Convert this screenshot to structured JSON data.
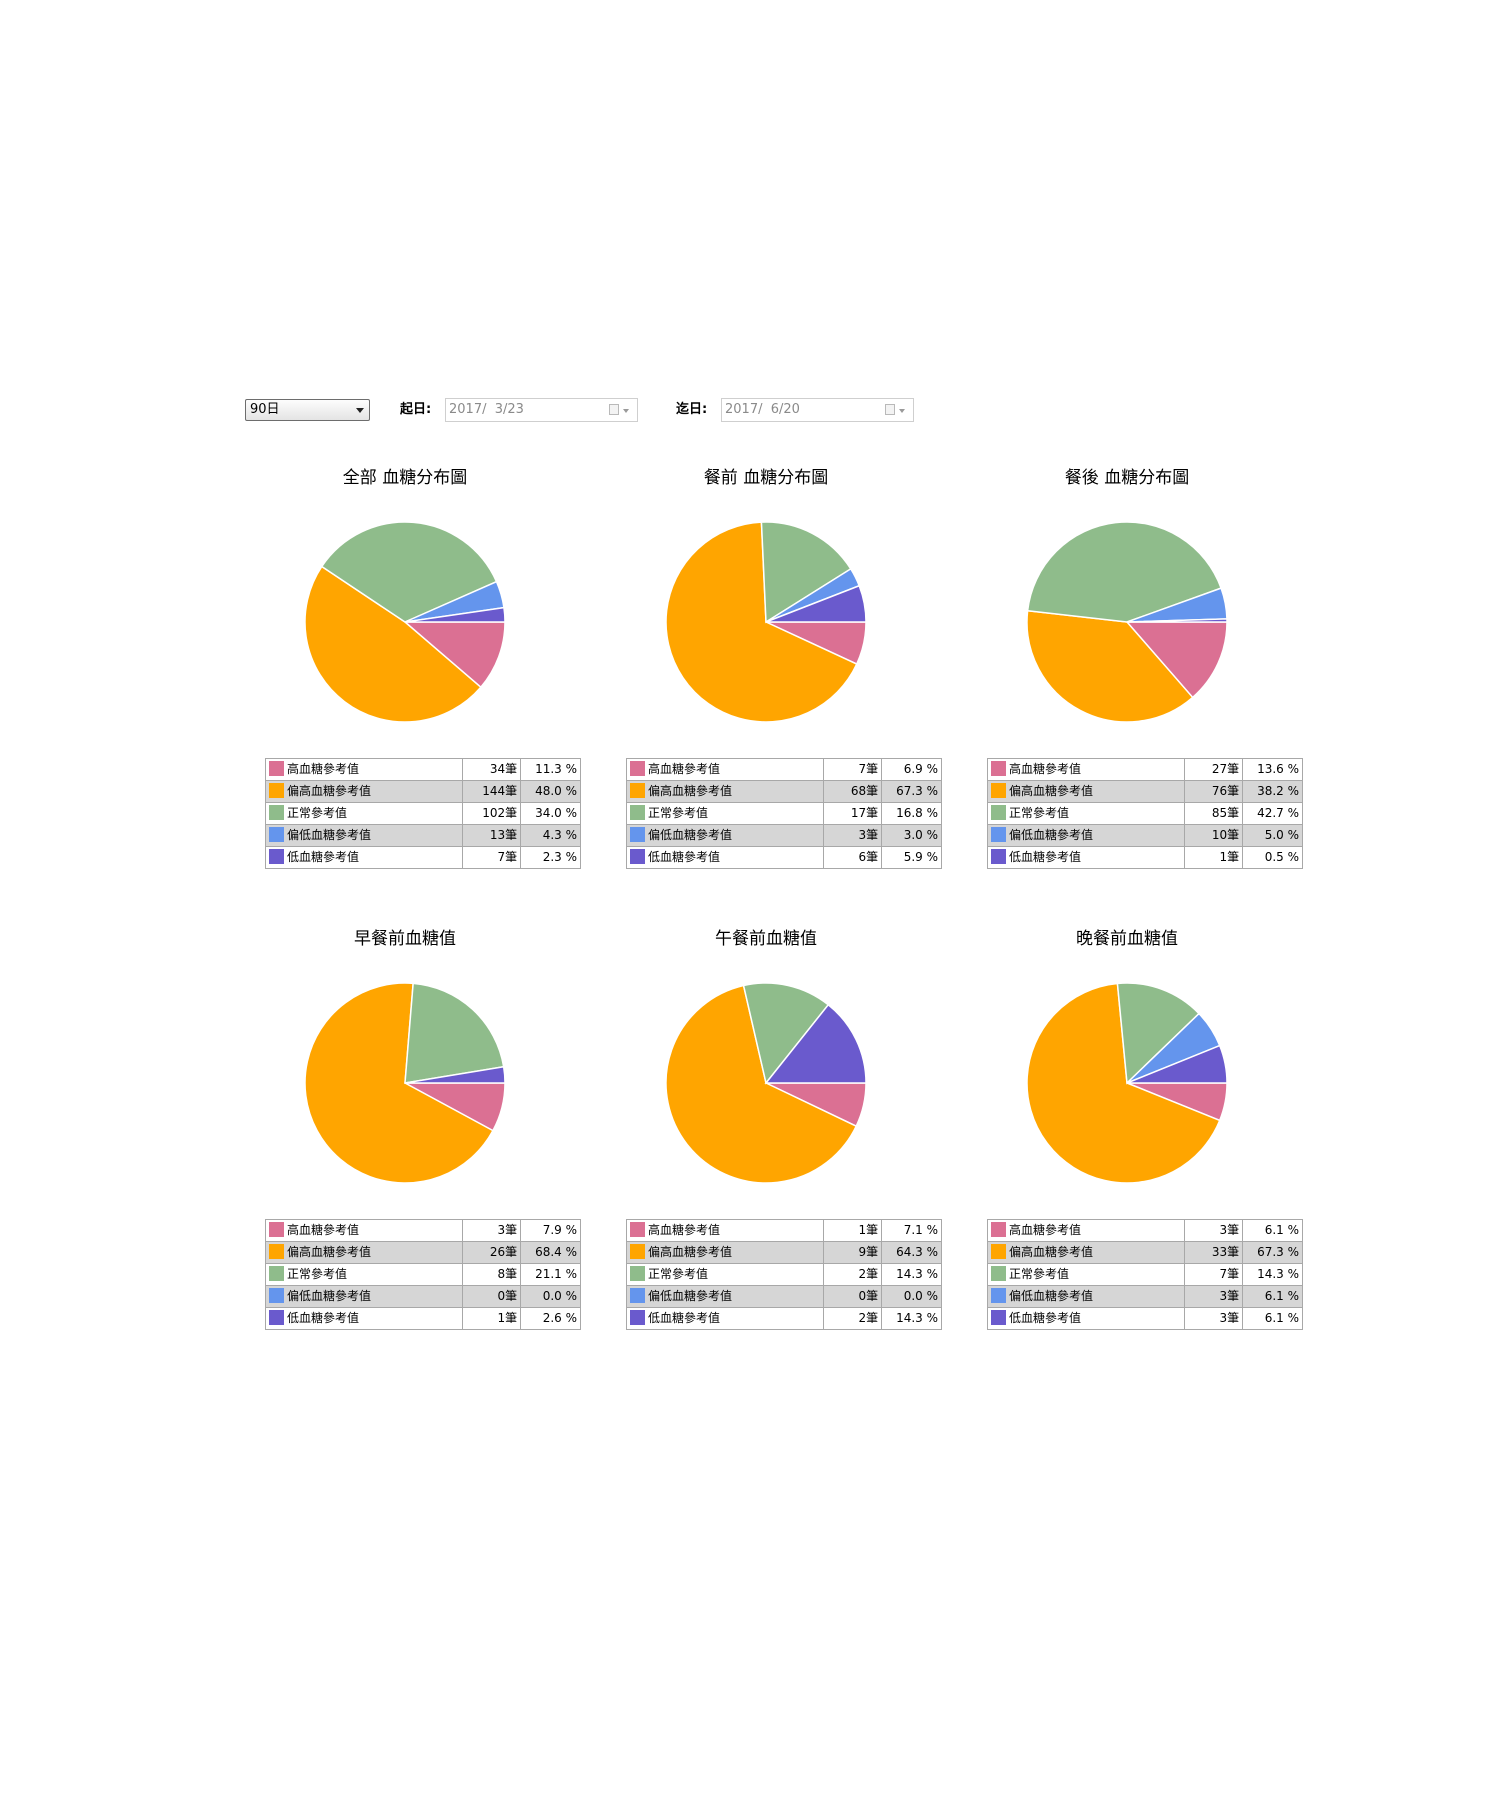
{
  "filters": {
    "period": "90日",
    "start_label": "起日:",
    "start_date": "2017/  3/23",
    "end_label": "迄日:",
    "end_date": "2017/  6/20"
  },
  "colors": {
    "high": "#db7093",
    "slightly_high": "#ffa500",
    "normal": "#8fbc8b",
    "slightly_low": "#6495ed",
    "low": "#6a5acd"
  },
  "chart_data": [
    {
      "type": "pie",
      "title": "全部 血糖分布圖",
      "labels": [
        "高血糖參考值",
        "偏高血糖參考值",
        "正常參考值",
        "偏低血糖參考值",
        "低血糖參考值"
      ],
      "counts": [
        "34筆",
        "144筆",
        "102筆",
        "13筆",
        "7筆"
      ],
      "values": [
        11.3,
        48.0,
        34.0,
        4.3,
        2.3
      ],
      "percent_labels": [
        "11.3 %",
        "48.0 %",
        "34.0 %",
        "4.3 %",
        "2.3 %"
      ],
      "colors": [
        "#db7093",
        "#ffa500",
        "#8fbc8b",
        "#6495ed",
        "#6a5acd"
      ]
    },
    {
      "type": "pie",
      "title": "餐前 血糖分布圖",
      "labels": [
        "高血糖參考值",
        "偏高血糖參考值",
        "正常參考值",
        "偏低血糖參考值",
        "低血糖參考值"
      ],
      "counts": [
        "7筆",
        "68筆",
        "17筆",
        "3筆",
        "6筆"
      ],
      "values": [
        6.9,
        67.3,
        16.8,
        3.0,
        5.9
      ],
      "percent_labels": [
        "6.9 %",
        "67.3 %",
        "16.8 %",
        "3.0 %",
        "5.9 %"
      ],
      "colors": [
        "#db7093",
        "#ffa500",
        "#8fbc8b",
        "#6495ed",
        "#6a5acd"
      ]
    },
    {
      "type": "pie",
      "title": "餐後 血糖分布圖",
      "labels": [
        "高血糖參考值",
        "偏高血糖參考值",
        "正常參考值",
        "偏低血糖參考值",
        "低血糖參考值"
      ],
      "counts": [
        "27筆",
        "76筆",
        "85筆",
        "10筆",
        "1筆"
      ],
      "values": [
        13.6,
        38.2,
        42.7,
        5.0,
        0.5
      ],
      "percent_labels": [
        "13.6 %",
        "38.2 %",
        "42.7 %",
        "5.0 %",
        "0.5 %"
      ],
      "colors": [
        "#db7093",
        "#ffa500",
        "#8fbc8b",
        "#6495ed",
        "#6a5acd"
      ]
    },
    {
      "type": "pie",
      "title": "早餐前血糖值",
      "labels": [
        "高血糖參考值",
        "偏高血糖參考值",
        "正常參考值",
        "偏低血糖參考值",
        "低血糖參考值"
      ],
      "counts": [
        "3筆",
        "26筆",
        "8筆",
        "0筆",
        "1筆"
      ],
      "values": [
        7.9,
        68.4,
        21.1,
        0.0,
        2.6
      ],
      "percent_labels": [
        "7.9 %",
        "68.4 %",
        "21.1 %",
        "0.0 %",
        "2.6 %"
      ],
      "colors": [
        "#db7093",
        "#ffa500",
        "#8fbc8b",
        "#6495ed",
        "#6a5acd"
      ]
    },
    {
      "type": "pie",
      "title": "午餐前血糖值",
      "labels": [
        "高血糖參考值",
        "偏高血糖參考值",
        "正常參考值",
        "偏低血糖參考值",
        "低血糖參考值"
      ],
      "counts": [
        "1筆",
        "9筆",
        "2筆",
        "0筆",
        "2筆"
      ],
      "values": [
        7.1,
        64.3,
        14.3,
        0.0,
        14.3
      ],
      "percent_labels": [
        "7.1 %",
        "64.3 %",
        "14.3 %",
        "0.0 %",
        "14.3 %"
      ],
      "colors": [
        "#db7093",
        "#ffa500",
        "#8fbc8b",
        "#6495ed",
        "#6a5acd"
      ]
    },
    {
      "type": "pie",
      "title": "晚餐前血糖值",
      "labels": [
        "高血糖參考值",
        "偏高血糖參考值",
        "正常參考值",
        "偏低血糖參考值",
        "低血糖參考值"
      ],
      "counts": [
        "3筆",
        "33筆",
        "7筆",
        "3筆",
        "3筆"
      ],
      "values": [
        6.1,
        67.3,
        14.3,
        6.1,
        6.1
      ],
      "percent_labels": [
        "6.1 %",
        "67.3 %",
        "14.3 %",
        "6.1 %",
        "6.1 %"
      ],
      "colors": [
        "#db7093",
        "#ffa500",
        "#8fbc8b",
        "#6495ed",
        "#6a5acd"
      ]
    }
  ]
}
